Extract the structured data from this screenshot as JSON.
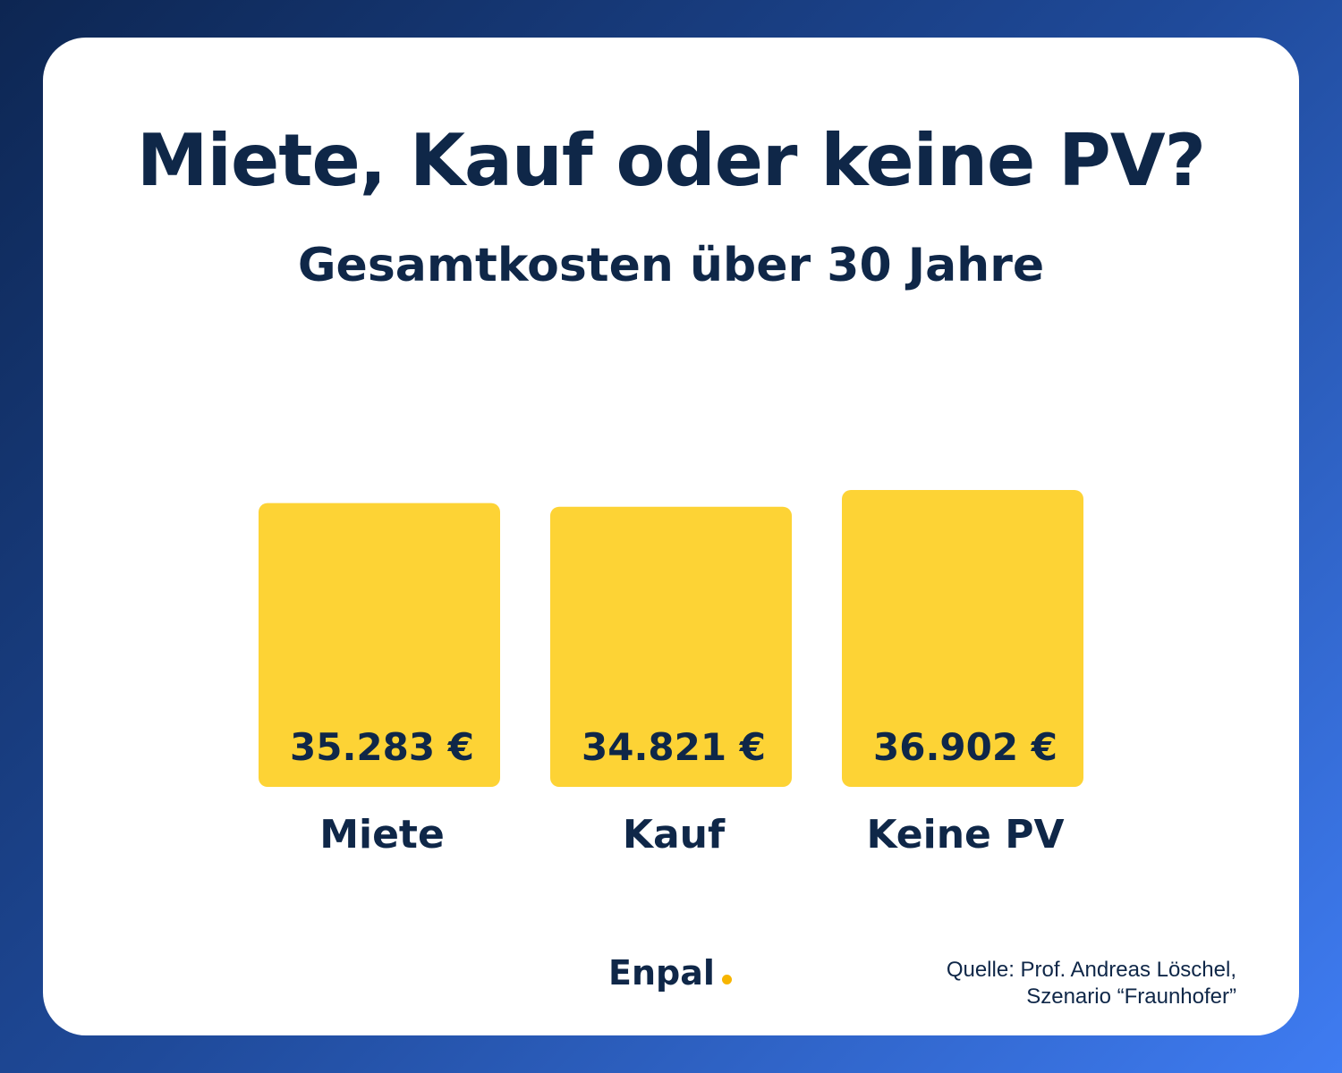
{
  "colors": {
    "bar": "#fdd335",
    "text": "#0f2748",
    "card": "#ffffff",
    "accent_dot": "#f7b500"
  },
  "title": "Miete, Kauf oder keine PV?",
  "subtitle": "Gesamtkosten über 30 Jahre",
  "chart_data": {
    "type": "bar",
    "title": "Miete, Kauf oder keine PV?",
    "subtitle": "Gesamtkosten über 30 Jahre",
    "categories": [
      "Miete",
      "Kauf",
      "Keine PV"
    ],
    "values": [
      35283,
      34821,
      36902
    ],
    "value_labels": [
      "35.283 €",
      "34.821 €",
      "36.902 €"
    ],
    "xlabel": "",
    "ylabel": "",
    "grid": false,
    "legend": "none"
  },
  "logo": {
    "text": "Enpal"
  },
  "source": {
    "line1": "Quelle: Prof. Andreas Löschel,",
    "line2": "Szenario “Fraunhofer”"
  }
}
